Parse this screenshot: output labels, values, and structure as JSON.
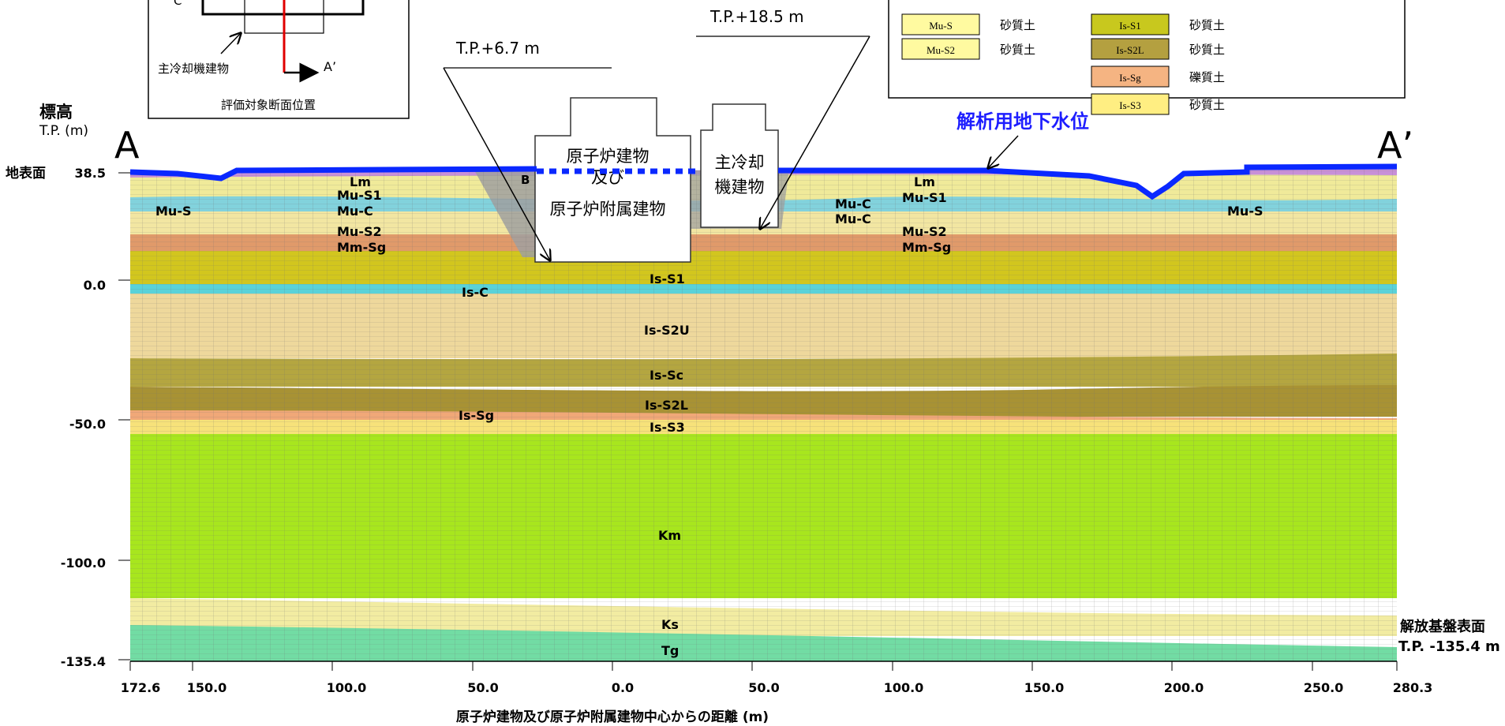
{
  "figure": {
    "y_title": "標高",
    "y_unit": "T.P. (m)",
    "x_title": "原子炉建物及び原子炉附属建物中心からの距離 (m)",
    "section_start": "A",
    "section_end": "A’",
    "ground_surface_label": "地表面",
    "y_ticks": [
      "38.5",
      "0.0",
      "-50.0",
      "-100.0",
      "-135.4"
    ],
    "x_ticks": [
      "172.6",
      "150.0",
      "100.0",
      "50.0",
      "0.0",
      "50.0",
      "100.0",
      "150.0",
      "200.0",
      "250.0",
      "280.3"
    ],
    "water_table_label": "解析用地下水位",
    "bedrock_label": "解放基盤表面",
    "bedrock_elevation": "T.P. -135.4 m",
    "elevation_callouts": [
      "T.P.+6.7 m",
      "T.P.+18.5 m"
    ],
    "buildings": {
      "reactor_line1": "原子炉建物",
      "reactor_line2": "及び",
      "reactor_line3": "原子炉附属建物",
      "cooler_line1": "主冷却",
      "cooler_line2": "機建物"
    },
    "marker_b": "B"
  },
  "inset": {
    "caption": "評価対象断面位置",
    "building_label": "主冷却機建物",
    "point_a_prime": "A’",
    "point_c": "C"
  },
  "legend": {
    "rows": [
      {
        "code": "Mu-S",
        "desc": "砂質土",
        "color": "#fffaa0",
        "code2": "Is-S1",
        "desc2": "砂質土",
        "color2": "#c8c81e"
      },
      {
        "code": "Mu-S2",
        "desc": "砂質土",
        "color": "#fffaa0",
        "code2": "Is-S2L",
        "desc2": "砂質土",
        "color2": "#b4a040"
      },
      {
        "code": "",
        "desc": "",
        "color": "",
        "code2": "Is-Sg",
        "desc2": "礫質土",
        "color2": "#f5b482"
      },
      {
        "code": "",
        "desc": "",
        "color": "",
        "code2": "Is-S3",
        "desc2": "砂質土",
        "color2": "#ffee82"
      }
    ]
  },
  "layer_labels": {
    "lm_left": "Lm",
    "mus1_left": "Mu-S1",
    "muc_left": "Mu-C",
    "mus2_left": "Mu-S2",
    "mmsg_left": "Mm-Sg",
    "mus_left": "Mu-S",
    "mus_right": "Mu-S",
    "lm_right": "Lm",
    "mus1_right": "Mu-S1",
    "muc_right1": "Mu-C",
    "muc_right2": "Mu-C",
    "mus2_right": "Mu-S2",
    "mmsg_right": "Mm-Sg",
    "iss1": "Is-S1",
    "isc": "Is-C",
    "iss2u": "Is-S2U",
    "issc": "Is-Sc",
    "iss2l": "Is-S2L",
    "issg": "Is-Sg",
    "iss3": "Is-S3",
    "km": "Km",
    "ks": "Ks",
    "tg": "Tg"
  },
  "colors": {
    "water_table": "#0a28ff",
    "label_blue": "#1e1eff",
    "inset_line": "#e00000",
    "mesh": "#8c8c8c"
  }
}
